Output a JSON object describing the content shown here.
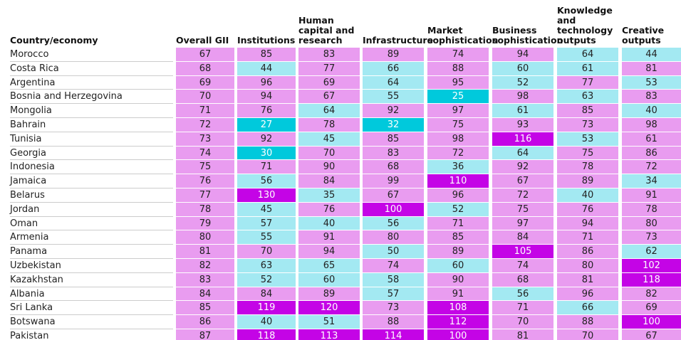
{
  "table": {
    "header": [
      "Country/economy",
      "Overall GII",
      "Institutions",
      "Human capital and research",
      "Infrastructure",
      "Market sophistication",
      "Business sophistication",
      "Knowledge and technology outputs",
      "Creative outputs"
    ],
    "palette": {
      "pink": "#e99cf0",
      "cyan": "#a3e9f2",
      "teal": "#00c9dc",
      "magenta": "#c404e6"
    },
    "rows": [
      {
        "country": "Morocco",
        "values": [
          67,
          85,
          83,
          89,
          74,
          94,
          64,
          44
        ],
        "shades": [
          "pink",
          "pink",
          "pink",
          "pink",
          "pink",
          "pink",
          "cyan",
          "cyan"
        ]
      },
      {
        "country": "Costa Rica",
        "values": [
          68,
          44,
          77,
          66,
          88,
          60,
          61,
          81
        ],
        "shades": [
          "pink",
          "cyan",
          "pink",
          "cyan",
          "pink",
          "cyan",
          "cyan",
          "pink"
        ]
      },
      {
        "country": "Argentina",
        "values": [
          69,
          96,
          69,
          64,
          95,
          52,
          77,
          53
        ],
        "shades": [
          "pink",
          "pink",
          "pink",
          "cyan",
          "pink",
          "cyan",
          "pink",
          "cyan"
        ]
      },
      {
        "country": "Bosnia and Herzegovina",
        "values": [
          70,
          94,
          67,
          55,
          25,
          98,
          63,
          83
        ],
        "shades": [
          "pink",
          "pink",
          "pink",
          "cyan",
          "teal",
          "pink",
          "cyan",
          "pink"
        ]
      },
      {
        "country": "Mongolia",
        "values": [
          71,
          76,
          64,
          92,
          97,
          61,
          85,
          40
        ],
        "shades": [
          "pink",
          "pink",
          "cyan",
          "pink",
          "pink",
          "cyan",
          "pink",
          "cyan"
        ]
      },
      {
        "country": "Bahrain",
        "values": [
          72,
          27,
          78,
          32,
          75,
          93,
          73,
          98
        ],
        "shades": [
          "pink",
          "teal",
          "pink",
          "teal",
          "pink",
          "pink",
          "pink",
          "pink"
        ]
      },
      {
        "country": "Tunisia",
        "values": [
          73,
          92,
          45,
          85,
          98,
          116,
          53,
          61
        ],
        "shades": [
          "pink",
          "pink",
          "cyan",
          "pink",
          "pink",
          "magenta",
          "cyan",
          "pink"
        ]
      },
      {
        "country": "Georgia",
        "values": [
          74,
          30,
          70,
          83,
          72,
          64,
          75,
          86
        ],
        "shades": [
          "pink",
          "teal",
          "pink",
          "pink",
          "pink",
          "cyan",
          "pink",
          "pink"
        ]
      },
      {
        "country": "Indonesia",
        "values": [
          75,
          71,
          90,
          68,
          36,
          92,
          78,
          72
        ],
        "shades": [
          "pink",
          "pink",
          "pink",
          "pink",
          "cyan",
          "pink",
          "pink",
          "pink"
        ]
      },
      {
        "country": "Jamaica",
        "values": [
          76,
          56,
          84,
          99,
          110,
          67,
          89,
          34
        ],
        "shades": [
          "pink",
          "cyan",
          "pink",
          "pink",
          "magenta",
          "pink",
          "pink",
          "cyan"
        ]
      },
      {
        "country": "Belarus",
        "values": [
          77,
          130,
          35,
          67,
          96,
          72,
          40,
          91
        ],
        "shades": [
          "pink",
          "magenta",
          "cyan",
          "pink",
          "pink",
          "pink",
          "cyan",
          "pink"
        ]
      },
      {
        "country": "Jordan",
        "values": [
          78,
          45,
          76,
          100,
          52,
          75,
          76,
          78
        ],
        "shades": [
          "pink",
          "cyan",
          "pink",
          "magenta",
          "cyan",
          "pink",
          "pink",
          "pink"
        ]
      },
      {
        "country": "Oman",
        "values": [
          79,
          57,
          40,
          56,
          71,
          97,
          94,
          80
        ],
        "shades": [
          "pink",
          "cyan",
          "cyan",
          "cyan",
          "pink",
          "pink",
          "pink",
          "pink"
        ]
      },
      {
        "country": "Armenia",
        "values": [
          80,
          55,
          91,
          80,
          85,
          84,
          71,
          73
        ],
        "shades": [
          "pink",
          "cyan",
          "pink",
          "pink",
          "pink",
          "pink",
          "pink",
          "pink"
        ]
      },
      {
        "country": "Panama",
        "values": [
          81,
          70,
          94,
          50,
          89,
          105,
          86,
          62
        ],
        "shades": [
          "pink",
          "pink",
          "pink",
          "cyan",
          "pink",
          "magenta",
          "pink",
          "cyan"
        ]
      },
      {
        "country": "Uzbekistan",
        "values": [
          82,
          63,
          65,
          74,
          60,
          74,
          80,
          102
        ],
        "shades": [
          "pink",
          "cyan",
          "cyan",
          "pink",
          "cyan",
          "pink",
          "pink",
          "magenta"
        ]
      },
      {
        "country": "Kazakhstan",
        "values": [
          83,
          52,
          60,
          58,
          90,
          68,
          81,
          118
        ],
        "shades": [
          "pink",
          "cyan",
          "cyan",
          "cyan",
          "pink",
          "pink",
          "pink",
          "magenta"
        ]
      },
      {
        "country": "Albania",
        "values": [
          84,
          84,
          89,
          57,
          91,
          56,
          96,
          82
        ],
        "shades": [
          "pink",
          "pink",
          "pink",
          "cyan",
          "pink",
          "cyan",
          "pink",
          "pink"
        ]
      },
      {
        "country": "Sri Lanka",
        "values": [
          85,
          119,
          120,
          73,
          108,
          71,
          66,
          69
        ],
        "shades": [
          "pink",
          "magenta",
          "magenta",
          "pink",
          "magenta",
          "pink",
          "cyan",
          "pink"
        ]
      },
      {
        "country": "Botswana",
        "values": [
          86,
          40,
          51,
          88,
          112,
          70,
          88,
          100
        ],
        "shades": [
          "pink",
          "cyan",
          "cyan",
          "pink",
          "magenta",
          "pink",
          "pink",
          "magenta"
        ]
      },
      {
        "country": "Pakistan",
        "values": [
          87,
          118,
          113,
          114,
          100,
          81,
          70,
          67
        ],
        "shades": [
          "pink",
          "magenta",
          "magenta",
          "magenta",
          "magenta",
          "pink",
          "pink",
          "pink"
        ]
      }
    ]
  }
}
